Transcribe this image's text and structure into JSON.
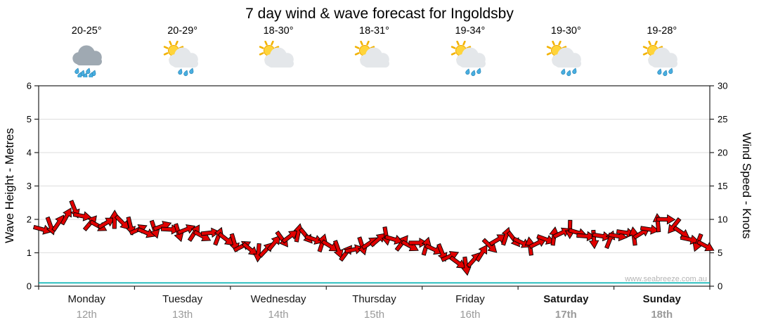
{
  "title": "7 day wind & wave forecast for Ingoldsby",
  "watermark": "www.seabreeze.com.au",
  "days": [
    {
      "name": "Monday",
      "date": "12th",
      "temp": "20-25°",
      "icon": "rain-cloud-icon",
      "bold": false
    },
    {
      "name": "Tuesday",
      "date": "13th",
      "temp": "20-29°",
      "icon": "sun-cloud-rain-icon",
      "bold": false
    },
    {
      "name": "Wednesday",
      "date": "14th",
      "temp": "18-30°",
      "icon": "sun-cloud-icon",
      "bold": false
    },
    {
      "name": "Thursday",
      "date": "15th",
      "temp": "18-31°",
      "icon": "sun-cloud-icon",
      "bold": false
    },
    {
      "name": "Friday",
      "date": "16th",
      "temp": "19-34°",
      "icon": "sun-cloud-rain-icon",
      "bold": false
    },
    {
      "name": "Saturday",
      "date": "17th",
      "temp": "19-30°",
      "icon": "sun-cloud-rain-icon",
      "bold": true
    },
    {
      "name": "Sunday",
      "date": "18th",
      "temp": "19-28°",
      "icon": "sun-cloud-rain-icon",
      "bold": true
    }
  ],
  "chart_data": {
    "type": "line",
    "title": "7 day wind & wave forecast for Ingoldsby",
    "categories": [
      "Monday 12th",
      "Tuesday 13th",
      "Wednesday 14th",
      "Thursday 15th",
      "Friday 16th",
      "Saturday 17th",
      "Sunday 18th"
    ],
    "samples_per_day": 12,
    "grid": "horizontal",
    "left_axis": {
      "label": "Wave Height - Metres",
      "min": 0,
      "max": 6,
      "ticks": [
        0,
        1,
        2,
        3,
        4,
        5,
        6
      ]
    },
    "right_axis": {
      "label": "Wind Speed - Knots",
      "min": 0,
      "max": 30,
      "ticks": [
        0,
        5,
        10,
        15,
        20,
        25,
        30
      ]
    },
    "series": [
      {
        "name": "Wind Speed",
        "unit": "knots",
        "axis": "right",
        "color": "#e10000",
        "style": "wind-arrows",
        "values": [
          8.5,
          9,
          9.5,
          10.5,
          11.5,
          10.5,
          9.5,
          9,
          9.5,
          10,
          9.5,
          9,
          8.5,
          8,
          8.5,
          9,
          8.5,
          8,
          8.5,
          8,
          7.5,
          8,
          7.5,
          7,
          6.5,
          6,
          5.5,
          5,
          5.5,
          6.5,
          7,
          7.5,
          8,
          7.5,
          7,
          6.5,
          6,
          5.5,
          5,
          5.5,
          6,
          6.5,
          7,
          7.5,
          7,
          6.5,
          6,
          6.5,
          6,
          5.5,
          5,
          4.5,
          3.5,
          3,
          4,
          5,
          6,
          7,
          7.5,
          7,
          6.5,
          6,
          6.5,
          7,
          7.5,
          8,
          8.5,
          8,
          7.5,
          7,
          7.5,
          7,
          7.5,
          8,
          7.5,
          8,
          8.5,
          9.5,
          10,
          9,
          8,
          7,
          6.5,
          6
        ]
      },
      {
        "name": "Wave Height",
        "unit": "metres",
        "axis": "left",
        "color": "#00b2b2",
        "style": "line",
        "values": [
          0.1,
          0.1,
          0.1,
          0.1,
          0.1,
          0.1,
          0.1,
          0.1
        ]
      }
    ]
  }
}
